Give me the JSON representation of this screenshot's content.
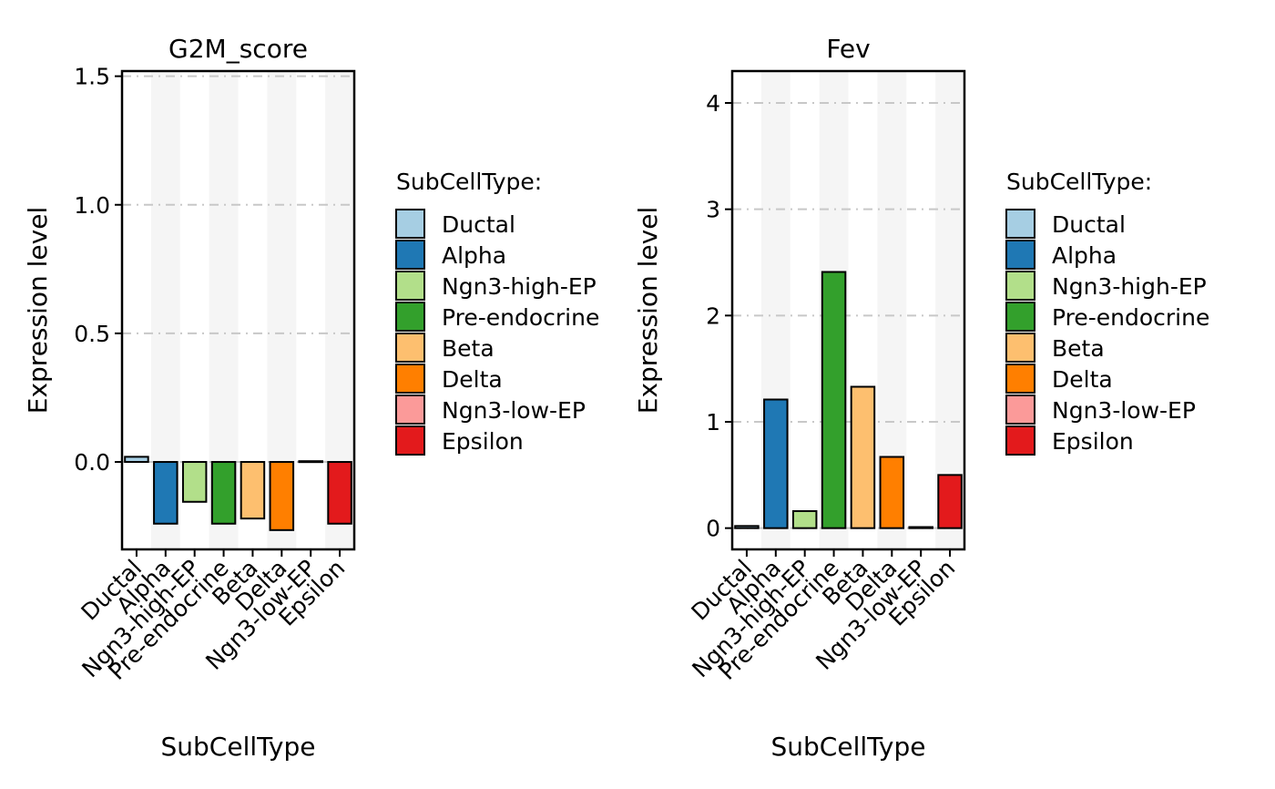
{
  "chart_data": [
    {
      "type": "bar",
      "title": "G2M_score",
      "xlabel": "SubCellType",
      "ylabel": "Expression level",
      "categories": [
        "Ductal",
        "Alpha",
        "Ngn3-high-EP",
        "Pre-endocrine",
        "Beta",
        "Delta",
        "Ngn3-low-EP",
        "Epsilon"
      ],
      "values": [
        0.02,
        -0.24,
        -0.155,
        -0.24,
        -0.22,
        -0.265,
        0.003,
        -0.24
      ],
      "ylim": [
        -0.34,
        1.52
      ],
      "yticks": [
        0.0,
        0.5,
        1.0,
        1.5
      ],
      "ytick_labels": [
        "0.0",
        "0.5",
        "1.0",
        "1.5"
      ],
      "grid": "horizontal dash-dot",
      "legend": {
        "title": "SubCellType:",
        "placement": "right",
        "entries": [
          "Ductal",
          "Alpha",
          "Ngn3-high-EP",
          "Pre-endocrine",
          "Beta",
          "Delta",
          "Ngn3-low-EP",
          "Epsilon"
        ]
      }
    },
    {
      "type": "bar",
      "title": "Fev",
      "xlabel": "SubCellType",
      "ylabel": "Expression level",
      "categories": [
        "Ductal",
        "Alpha",
        "Ngn3-high-EP",
        "Pre-endocrine",
        "Beta",
        "Delta",
        "Ngn3-low-EP",
        "Epsilon"
      ],
      "values": [
        0.02,
        1.21,
        0.16,
        2.41,
        1.33,
        0.67,
        0.01,
        0.5
      ],
      "ylim": [
        -0.2,
        4.3
      ],
      "yticks": [
        0,
        1,
        2,
        3,
        4
      ],
      "ytick_labels": [
        "0",
        "1",
        "2",
        "3",
        "4"
      ],
      "grid": "horizontal dash-dot",
      "legend": {
        "title": "SubCellType:",
        "placement": "right",
        "entries": [
          "Ductal",
          "Alpha",
          "Ngn3-high-EP",
          "Pre-endocrine",
          "Beta",
          "Delta",
          "Ngn3-low-EP",
          "Epsilon"
        ]
      }
    }
  ],
  "colors": {
    "Ductal": "#A6CEE3",
    "Alpha": "#1F78B4",
    "Ngn3-high-EP": "#B2DF8A",
    "Pre-endocrine": "#33A02C",
    "Beta": "#FDBF6F",
    "Delta": "#FF7F00",
    "Ngn3-low-EP": "#FB9A99",
    "Epsilon": "#E31A1C",
    "stripe": "#F5F5F5",
    "grid": "#C8C8C8"
  }
}
